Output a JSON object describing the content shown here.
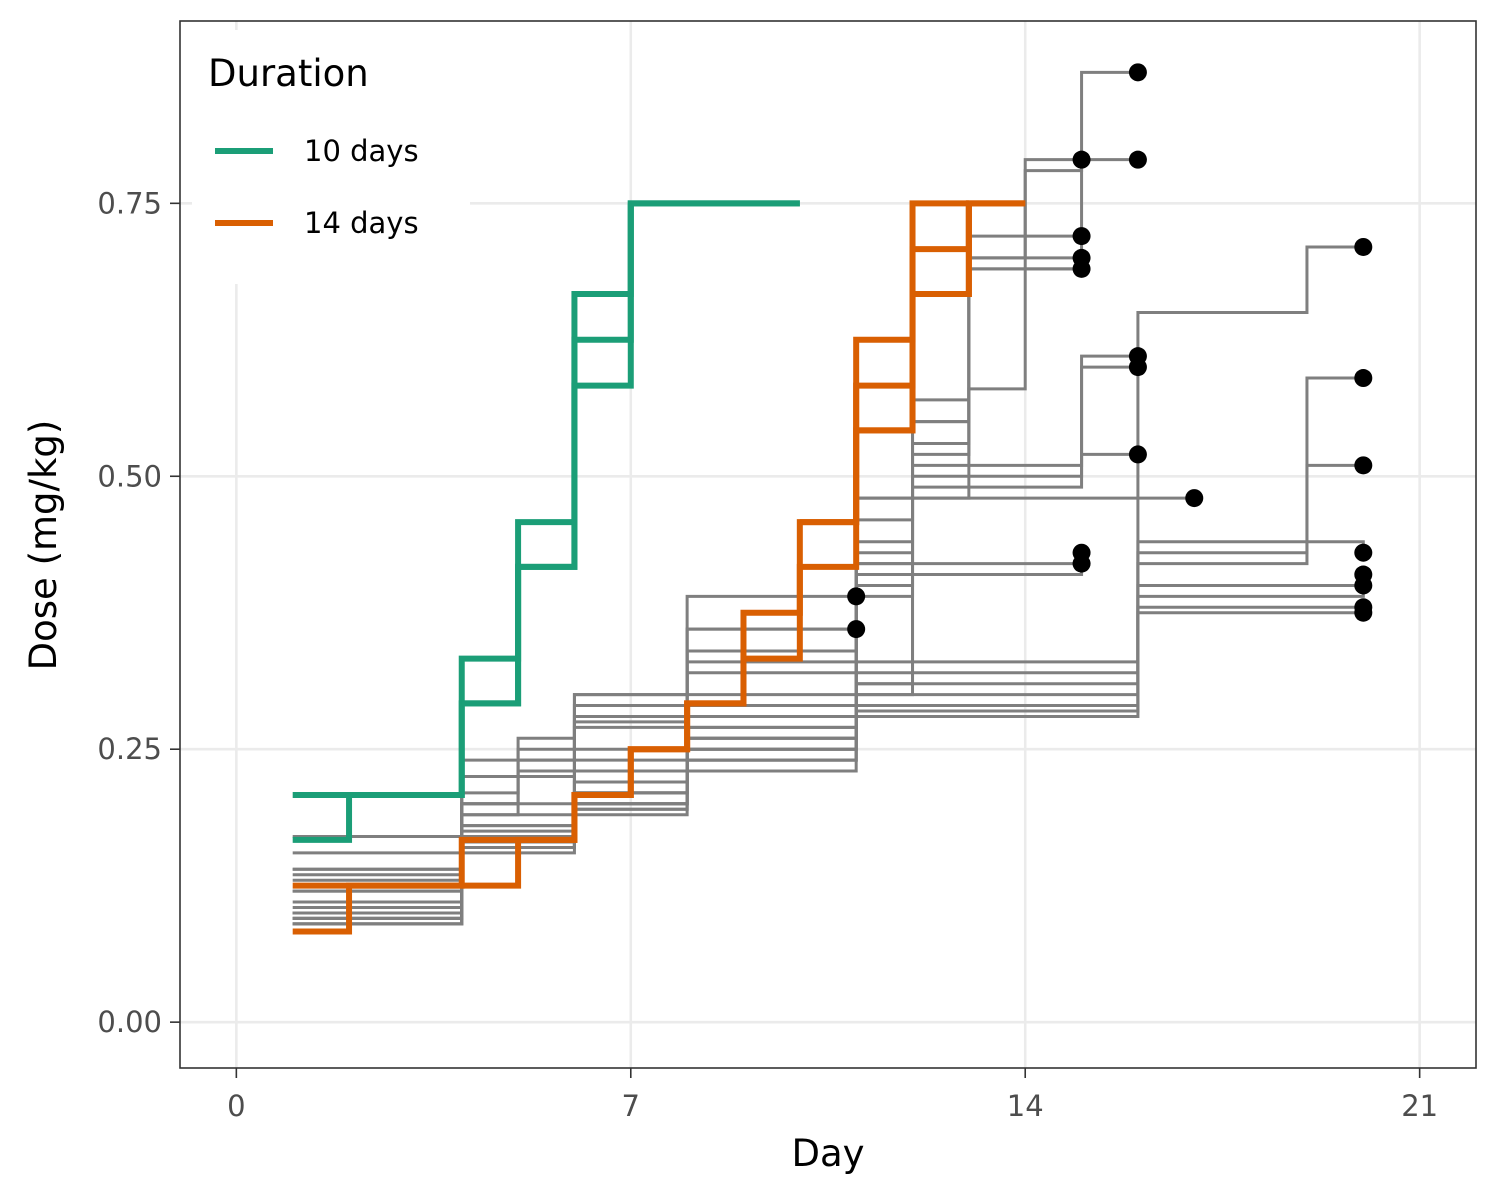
{
  "chart_data": {
    "type": "line",
    "title": "",
    "xlabel": "Day",
    "ylabel": "Dose (mg/kg)",
    "xlim": [
      -1,
      22
    ],
    "ylim": [
      -0.042,
      0.917
    ],
    "x_ticks": [
      0,
      7,
      14,
      21
    ],
    "y_ticks": [
      0.0,
      0.25,
      0.5,
      0.75
    ],
    "y_tick_labels": [
      "0.00",
      "0.25",
      "0.50",
      "0.75"
    ],
    "grid": true,
    "legend": {
      "title": "Duration",
      "placement": "top-left",
      "entries": [
        {
          "label": "10 days",
          "color": "#1b9e77"
        },
        {
          "label": "14 days",
          "color": "#d95f02"
        }
      ]
    },
    "colors": {
      "background_series": "#7f7f7f",
      "end_point": "#000000"
    },
    "series": [
      {
        "group": "10 days",
        "x": [
          1,
          2,
          4,
          5,
          6,
          7,
          10
        ],
        "y": [
          0.167,
          0.208,
          0.333,
          0.458,
          0.667,
          0.75,
          0.75
        ]
      },
      {
        "group": "10 days",
        "x": [
          1,
          4,
          5,
          6,
          7,
          10
        ],
        "y": [
          0.208,
          0.292,
          0.417,
          0.583,
          0.75,
          0.75
        ]
      },
      {
        "group": "10 days",
        "x": [
          4,
          5,
          6,
          7
        ],
        "y": [
          0.292,
          0.417,
          0.625,
          0.75
        ]
      },
      {
        "group": "14 days",
        "x": [
          1,
          2,
          4,
          5,
          6,
          7,
          8,
          9,
          10,
          11,
          12,
          13,
          14
        ],
        "y": [
          0.083,
          0.125,
          0.167,
          0.167,
          0.208,
          0.25,
          0.292,
          0.333,
          0.417,
          0.542,
          0.667,
          0.75,
          0.75
        ]
      },
      {
        "group": "14 days",
        "x": [
          1,
          4,
          5,
          6,
          7,
          8,
          9,
          10,
          11,
          12,
          13,
          14
        ],
        "y": [
          0.125,
          0.125,
          0.167,
          0.208,
          0.25,
          0.292,
          0.375,
          0.458,
          0.583,
          0.708,
          0.75,
          0.75
        ]
      },
      {
        "group": "14 days",
        "x": [
          10,
          11,
          12,
          13
        ],
        "y": [
          0.458,
          0.625,
          0.75,
          0.75
        ]
      },
      {
        "group": "14 days",
        "x": [
          11,
          12,
          13
        ],
        "y": [
          0.542,
          0.667,
          0.75
        ]
      },
      {
        "group": "other",
        "x": [
          1,
          4,
          6,
          8,
          11
        ],
        "y": [
          0.17,
          0.24,
          0.3,
          0.39,
          0.39
        ],
        "end_point": true
      },
      {
        "group": "other",
        "x": [
          1,
          4,
          6,
          8,
          11
        ],
        "y": [
          0.155,
          0.225,
          0.275,
          0.36,
          0.36
        ],
        "end_point": true
      },
      {
        "group": "other",
        "x": [
          1,
          4,
          5,
          6,
          8,
          11,
          12,
          13,
          15
        ],
        "y": [
          0.14,
          0.2,
          0.24,
          0.28,
          0.33,
          0.42,
          0.53,
          0.69,
          0.79
        ],
        "end_point": true
      },
      {
        "group": "other",
        "x": [
          1,
          4,
          5,
          6,
          8,
          11,
          13,
          14,
          15,
          16
        ],
        "y": [
          0.14,
          0.2,
          0.25,
          0.3,
          0.36,
          0.48,
          0.58,
          0.78,
          0.87,
          0.87
        ],
        "end_point": true
      },
      {
        "group": "other",
        "x": [
          1,
          4,
          5,
          6,
          8,
          11,
          12,
          13,
          14,
          15,
          16
        ],
        "y": [
          0.12,
          0.19,
          0.23,
          0.27,
          0.34,
          0.44,
          0.57,
          0.7,
          0.79,
          0.79,
          0.79
        ],
        "end_point": true
      },
      {
        "group": "other",
        "x": [
          1,
          4,
          5,
          6,
          8,
          11,
          12,
          13,
          15
        ],
        "y": [
          0.135,
          0.21,
          0.26,
          0.29,
          0.34,
          0.46,
          0.55,
          0.72,
          0.72
        ],
        "end_point": true
      },
      {
        "group": "other",
        "x": [
          1,
          4,
          6,
          8,
          11,
          12,
          13,
          15
        ],
        "y": [
          0.13,
          0.2,
          0.25,
          0.32,
          0.43,
          0.55,
          0.7,
          0.7
        ],
        "end_point": true
      },
      {
        "group": "other",
        "x": [
          1,
          4,
          6,
          8,
          11,
          12,
          13,
          15
        ],
        "y": [
          0.12,
          0.19,
          0.24,
          0.3,
          0.42,
          0.52,
          0.69,
          0.69
        ],
        "end_point": true
      },
      {
        "group": "other",
        "x": [
          1,
          4,
          6,
          8,
          11,
          12,
          15,
          16
        ],
        "y": [
          0.11,
          0.18,
          0.23,
          0.29,
          0.41,
          0.51,
          0.6,
          0.6
        ],
        "end_point": true
      },
      {
        "group": "other",
        "x": [
          1,
          4,
          6,
          8,
          11,
          12,
          15,
          16
        ],
        "y": [
          0.105,
          0.175,
          0.22,
          0.28,
          0.4,
          0.5,
          0.61,
          0.61
        ],
        "end_point": true
      },
      {
        "group": "other",
        "x": [
          1,
          4,
          6,
          8,
          11,
          12,
          15,
          16
        ],
        "y": [
          0.1,
          0.17,
          0.21,
          0.27,
          0.39,
          0.49,
          0.52,
          0.52
        ],
        "end_point": true
      },
      {
        "group": "other",
        "x": [
          1,
          4,
          6,
          8,
          11,
          17
        ],
        "y": [
          0.095,
          0.165,
          0.2,
          0.26,
          0.48,
          0.48
        ],
        "end_point": true
      },
      {
        "group": "other",
        "x": [
          1,
          4,
          6,
          8,
          11,
          12,
          15
        ],
        "y": [
          0.09,
          0.16,
          0.195,
          0.25,
          0.31,
          0.42,
          0.42
        ],
        "end_point": true
      },
      {
        "group": "other",
        "x": [
          1,
          4,
          6,
          8,
          11,
          12,
          15
        ],
        "y": [
          0.09,
          0.155,
          0.19,
          0.24,
          0.3,
          0.41,
          0.43
        ],
        "end_point": true
      },
      {
        "group": "other",
        "x": [
          1,
          4,
          6,
          8,
          11,
          16,
          19,
          20
        ],
        "y": [
          0.1,
          0.18,
          0.22,
          0.27,
          0.33,
          0.65,
          0.71,
          0.71
        ],
        "end_point": true
      },
      {
        "group": "other",
        "x": [
          1,
          4,
          6,
          8,
          11,
          16,
          19,
          20
        ],
        "y": [
          0.095,
          0.17,
          0.21,
          0.26,
          0.32,
          0.43,
          0.59,
          0.59
        ],
        "end_point": true
      },
      {
        "group": "other",
        "x": [
          1,
          4,
          6,
          8,
          11,
          16,
          19,
          20
        ],
        "y": [
          0.09,
          0.16,
          0.2,
          0.25,
          0.31,
          0.42,
          0.51,
          0.51
        ],
        "end_point": true
      },
      {
        "group": "other",
        "x": [
          1,
          4,
          6,
          8,
          11,
          16,
          20
        ],
        "y": [
          0.1,
          0.17,
          0.21,
          0.26,
          0.3,
          0.44,
          0.43
        ],
        "end_point": true
      },
      {
        "group": "other",
        "x": [
          1,
          4,
          6,
          8,
          11,
          16,
          20
        ],
        "y": [
          0.095,
          0.165,
          0.2,
          0.25,
          0.29,
          0.4,
          0.41
        ],
        "end_point": true
      },
      {
        "group": "other",
        "x": [
          1,
          4,
          6,
          8,
          11,
          16,
          20
        ],
        "y": [
          0.09,
          0.16,
          0.195,
          0.24,
          0.285,
          0.39,
          0.4
        ],
        "end_point": true
      },
      {
        "group": "other",
        "x": [
          1,
          4,
          6,
          8,
          11,
          16,
          19,
          20
        ],
        "y": [
          0.1,
          0.17,
          0.21,
          0.24,
          0.28,
          0.38,
          0.38,
          0.38
        ],
        "end_point": true
      },
      {
        "group": "other",
        "x": [
          1,
          4,
          6,
          8,
          11,
          16,
          20
        ],
        "y": [
          0.095,
          0.16,
          0.2,
          0.23,
          0.285,
          0.375,
          0.375
        ],
        "end_point": true
      }
    ]
  }
}
